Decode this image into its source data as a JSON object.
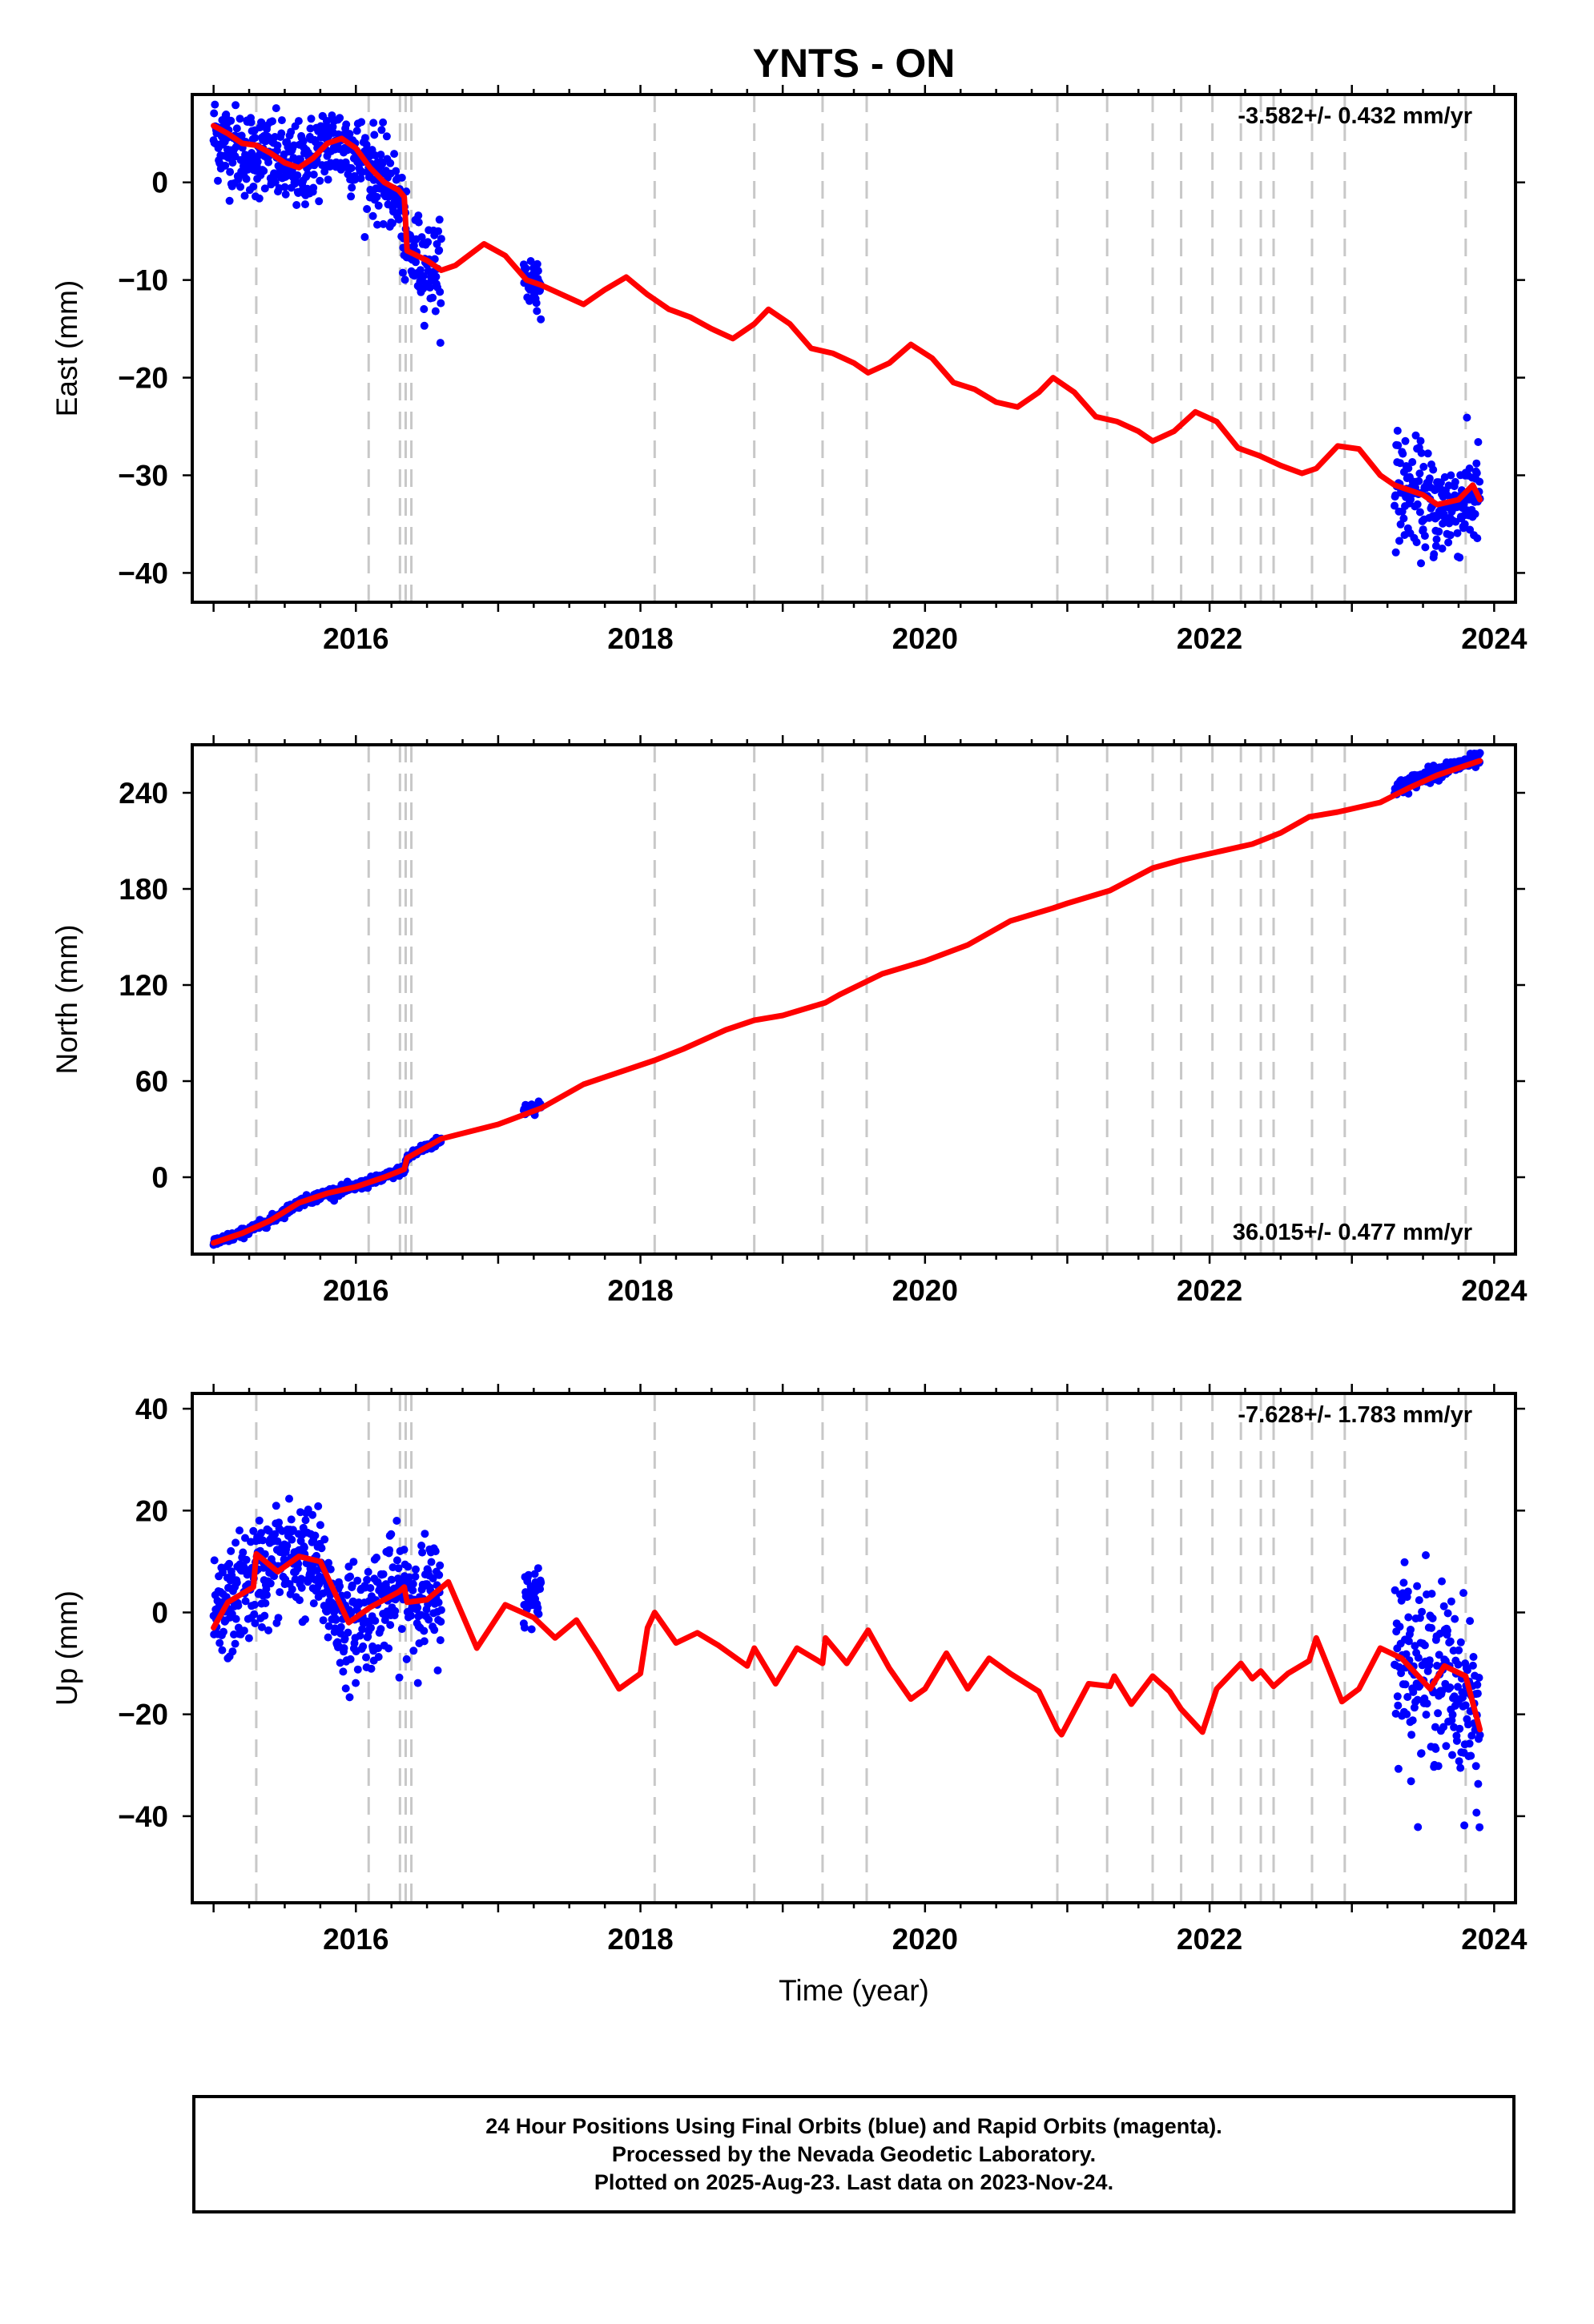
{
  "title": "YNTS - ON",
  "colors": {
    "points": "#0000ff",
    "model": "#ff0000",
    "event_lines": "#c8c8c8",
    "frame": "#000000"
  },
  "chart_data": [
    {
      "type": "scatter",
      "panel": "east",
      "ylabel": "East (mm)",
      "xlim": [
        2014.85,
        2024.15
      ],
      "ylim": [
        -43,
        9
      ],
      "yticks": [
        0,
        -10,
        -20,
        -30,
        -40
      ],
      "xticks": [
        2016,
        2018,
        2020,
        2022,
        2024
      ],
      "rate_label": "-3.582+/- 0.432 mm/yr",
      "rate_position": "top-right",
      "point_series": {
        "name": "24 hour positions (final orbits)",
        "segments": [
          {
            "start": 2015.0,
            "end": 2016.6,
            "t": [
              2015.0,
              2015.1,
              2015.2,
              2015.3,
              2015.4,
              2015.5,
              2015.6,
              2015.7,
              2015.8,
              2015.9,
              2016.0,
              2016.1,
              2016.2,
              2016.3,
              2016.35,
              2016.4,
              2016.5,
              2016.6
            ],
            "y": [
              5.0,
              4.0,
              3.0,
              3.0,
              2.5,
              1.5,
              1.5,
              2.5,
              4.0,
              4.0,
              3.0,
              1.5,
              0.0,
              -1.5,
              -7.0,
              -7.5,
              -8.5,
              -9.0
            ],
            "scatter": 2.2
          },
          {
            "start": 2017.18,
            "end": 2017.3,
            "t": [
              2017.18,
              2017.3
            ],
            "y": [
              -10.0,
              -10.5
            ],
            "scatter": 1.6
          },
          {
            "start": 2023.3,
            "end": 2023.9,
            "t": [
              2023.3,
              2023.45,
              2023.6,
              2023.75,
              2023.9
            ],
            "y": [
              -31.0,
              -32.0,
              -33.5,
              -33.0,
              -32.0
            ],
            "scatter": 2.6
          }
        ]
      },
      "model_series": {
        "name": "model",
        "t": [
          2015.0,
          2015.1,
          2015.2,
          2015.3,
          2015.4,
          2015.5,
          2015.6,
          2015.7,
          2015.8,
          2015.9,
          2016.0,
          2016.1,
          2016.2,
          2016.3,
          2016.34,
          2016.36,
          2016.5,
          2016.6,
          2016.7,
          2016.9,
          2017.05,
          2017.2,
          2017.3,
          2017.45,
          2017.6,
          2017.75,
          2017.9,
          2018.05,
          2018.2,
          2018.35,
          2018.5,
          2018.65,
          2018.8,
          2018.9,
          2019.05,
          2019.2,
          2019.35,
          2019.5,
          2019.6,
          2019.75,
          2019.9,
          2020.05,
          2020.2,
          2020.35,
          2020.5,
          2020.65,
          2020.8,
          2020.9,
          2021.05,
          2021.2,
          2021.35,
          2021.5,
          2021.6,
          2021.75,
          2021.9,
          2022.05,
          2022.2,
          2022.35,
          2022.5,
          2022.65,
          2022.75,
          2022.9,
          2023.05,
          2023.2,
          2023.3,
          2023.5,
          2023.6,
          2023.75,
          2023.85,
          2023.9
        ],
        "y": [
          5.8,
          5.0,
          4.0,
          3.8,
          3.0,
          2.0,
          1.5,
          2.5,
          4.0,
          4.5,
          3.5,
          1.5,
          0.0,
          -0.8,
          -1.5,
          -7.0,
          -8.0,
          -9.0,
          -8.5,
          -6.3,
          -7.5,
          -10.0,
          -10.5,
          -11.5,
          -12.5,
          -11.0,
          -9.7,
          -11.5,
          -13.0,
          -13.8,
          -15.0,
          -16.0,
          -14.5,
          -13.0,
          -14.5,
          -17.0,
          -17.5,
          -18.5,
          -19.5,
          -18.5,
          -16.6,
          -18.0,
          -20.5,
          -21.2,
          -22.5,
          -23.0,
          -21.5,
          -20.0,
          -21.5,
          -24.0,
          -24.5,
          -25.5,
          -26.5,
          -25.5,
          -23.5,
          -24.5,
          -27.2,
          -28.0,
          -29.0,
          -29.8,
          -29.3,
          -27.0,
          -27.3,
          -30.0,
          -31.0,
          -32.0,
          -33.0,
          -32.5,
          -31.0,
          -32.5
        ]
      }
    },
    {
      "type": "scatter",
      "panel": "north",
      "ylabel": "North (mm)",
      "xlim": [
        2014.85,
        2024.15
      ],
      "ylim": [
        -48,
        270
      ],
      "yticks": [
        0,
        60,
        120,
        180,
        240
      ],
      "xticks": [
        2016,
        2018,
        2020,
        2022,
        2024
      ],
      "rate_label": "36.015+/- 0.477 mm/yr",
      "rate_position": "bottom-right",
      "point_series": {
        "name": "24 hour positions (final orbits)",
        "segments": [
          {
            "start": 2015.0,
            "end": 2016.6,
            "t": [
              2015.0,
              2015.2,
              2015.4,
              2015.6,
              2015.8,
              2016.0,
              2016.2,
              2016.34,
              2016.36,
              2016.45,
              2016.6
            ],
            "y": [
              -41.0,
              -35.0,
              -27.0,
              -16.0,
              -10.0,
              -6.0,
              0.0,
              5.0,
              12.0,
              17.0,
              23.0
            ],
            "scatter": 1.4
          },
          {
            "start": 2017.18,
            "end": 2017.3,
            "t": [
              2017.18,
              2017.3
            ],
            "y": [
              42.0,
              45.0
            ],
            "scatter": 1.8
          },
          {
            "start": 2023.3,
            "end": 2023.9,
            "t": [
              2023.3,
              2023.5,
              2023.7,
              2023.9
            ],
            "y": [
              242.0,
              250.0,
              256.0,
              261.0
            ],
            "scatter": 2.2
          }
        ]
      },
      "model_series": {
        "name": "model",
        "t": [
          2015.0,
          2015.2,
          2015.4,
          2015.6,
          2015.8,
          2016.0,
          2016.2,
          2016.34,
          2016.36,
          2016.6,
          2017.0,
          2017.3,
          2017.6,
          2018.0,
          2018.1,
          2018.3,
          2018.6,
          2018.8,
          2019.0,
          2019.3,
          2019.4,
          2019.7,
          2020.0,
          2020.3,
          2020.6,
          2020.9,
          2021.0,
          2021.3,
          2021.6,
          2021.8,
          2022.0,
          2022.3,
          2022.5,
          2022.7,
          2022.9,
          2023.2,
          2023.4,
          2023.6,
          2023.8,
          2023.9
        ],
        "y": [
          -41.0,
          -35.0,
          -27.0,
          -16.0,
          -10.0,
          -6.0,
          0.0,
          5.0,
          12.0,
          24.0,
          33.0,
          43.0,
          58.0,
          70.0,
          73.0,
          80.0,
          92.0,
          98.0,
          101.0,
          109.0,
          114.0,
          127.0,
          135.0,
          145.0,
          160.0,
          168.0,
          171.0,
          179.0,
          193.0,
          198.0,
          202.0,
          208.0,
          215.0,
          225.0,
          228.0,
          234.0,
          243.0,
          251.0,
          257.0,
          260.0
        ]
      }
    },
    {
      "type": "scatter",
      "panel": "up",
      "ylabel": "Up (mm)",
      "xlabel": "Time (year)",
      "xlim": [
        2014.85,
        2024.15
      ],
      "ylim": [
        -57,
        43
      ],
      "yticks": [
        40,
        20,
        0,
        -20,
        -40
      ],
      "xticks": [
        2016,
        2018,
        2020,
        2022,
        2024
      ],
      "rate_label": "-7.628+/- 1.783 mm/yr",
      "rate_position": "top-right",
      "point_series": {
        "name": "24 hour positions (final orbits)",
        "segments": [
          {
            "start": 2015.0,
            "end": 2016.6,
            "t": [
              2015.0,
              2015.15,
              2015.3,
              2015.45,
              2015.6,
              2015.75,
              2015.9,
              2016.05,
              2016.2,
              2016.35,
              2016.5,
              2016.6
            ],
            "y": [
              -3.0,
              3.0,
              7.0,
              10.0,
              11.0,
              8.0,
              -3.0,
              -1.0,
              3.0,
              4.0,
              3.0,
              3.0
            ],
            "scatter": 5.5
          },
          {
            "start": 2017.18,
            "end": 2017.3,
            "t": [
              2017.18,
              2017.3
            ],
            "y": [
              2.0,
              5.0
            ],
            "scatter": 3.0
          },
          {
            "start": 2023.3,
            "end": 2023.9,
            "t": [
              2023.3,
              2023.45,
              2023.6,
              2023.75,
              2023.9
            ],
            "y": [
              -6.0,
              -10.0,
              -12.0,
              -15.0,
              -22.0
            ],
            "scatter": 8.5
          }
        ]
      },
      "model_series": {
        "name": "model",
        "t": [
          2015.0,
          2015.1,
          2015.28,
          2015.3,
          2015.45,
          2015.6,
          2015.75,
          2015.95,
          2016.1,
          2016.3,
          2016.34,
          2016.36,
          2016.5,
          2016.65,
          2016.85,
          2017.05,
          2017.25,
          2017.4,
          2017.55,
          2017.7,
          2017.85,
          2018.0,
          2018.05,
          2018.1,
          2018.25,
          2018.4,
          2018.55,
          2018.75,
          2018.8,
          2018.95,
          2019.1,
          2019.28,
          2019.3,
          2019.45,
          2019.6,
          2019.75,
          2019.9,
          2020.0,
          2020.15,
          2020.3,
          2020.45,
          2020.6,
          2020.8,
          2020.93,
          2020.96,
          2021.15,
          2021.3,
          2021.33,
          2021.45,
          2021.6,
          2021.72,
          2021.8,
          2021.95,
          2022.05,
          2022.22,
          2022.3,
          2022.36,
          2022.45,
          2022.55,
          2022.7,
          2022.75,
          2022.93,
          2023.05,
          2023.2,
          2023.35,
          2023.55,
          2023.65,
          2023.8,
          2023.9
        ],
        "y": [
          -3.0,
          2.0,
          5.0,
          11.5,
          8.0,
          11.0,
          10.0,
          -2.0,
          1.0,
          4.0,
          5.0,
          2.0,
          2.5,
          6.0,
          -7.0,
          1.5,
          -1.0,
          -5.0,
          -1.5,
          -8.0,
          -15.0,
          -12.0,
          -3.0,
          0.0,
          -6.0,
          -4.0,
          -6.5,
          -10.5,
          -7.0,
          -14.0,
          -7.0,
          -10.0,
          -5.0,
          -10.0,
          -3.5,
          -11.0,
          -17.0,
          -15.0,
          -8.0,
          -15.0,
          -9.0,
          -12.0,
          -15.5,
          -23.0,
          -24.0,
          -14.0,
          -14.5,
          -12.5,
          -18.0,
          -12.5,
          -15.5,
          -19.0,
          -23.5,
          -15.0,
          -10.0,
          -13.0,
          -11.5,
          -14.5,
          -12.0,
          -9.5,
          -5.0,
          -17.5,
          -15.0,
          -7.0,
          -9.0,
          -15.0,
          -10.5,
          -12.5,
          -23.0
        ]
      }
    }
  ],
  "event_lines": [
    2015.3,
    2016.09,
    2016.31,
    2016.35,
    2016.39,
    2018.1,
    2018.8,
    2019.28,
    2019.59,
    2020.93,
    2021.28,
    2021.6,
    2021.8,
    2022.02,
    2022.22,
    2022.36,
    2022.45,
    2022.72,
    2022.95,
    2023.8
  ],
  "footer": {
    "line1": "24 Hour Positions Using Final Orbits (blue) and Rapid Orbits (magenta).",
    "line2": "Processed by the Nevada Geodetic Laboratory.",
    "line3": "Plotted on 2025-Aug-23. Last data on 2023-Nov-24."
  }
}
